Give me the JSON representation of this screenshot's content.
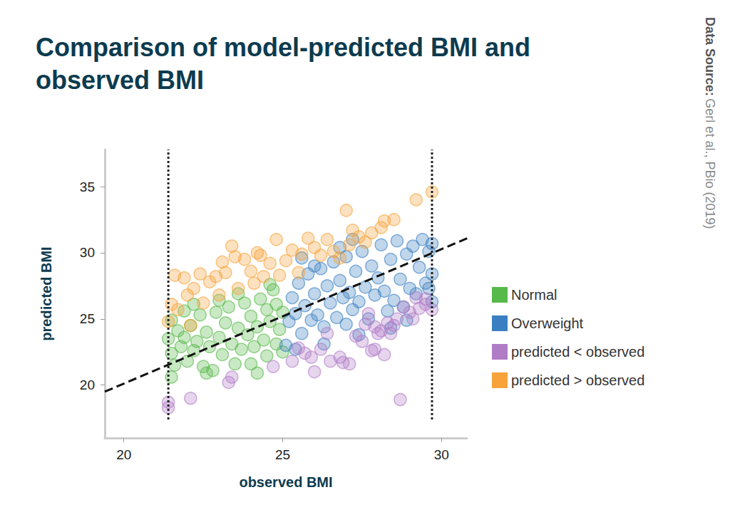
{
  "chart_data": {
    "type": "scatter",
    "title": "Comparison of model-predicted BMI and observed BMI",
    "x_label": "observed BMI",
    "y_label": "predicted BMI",
    "source": {
      "label": "Data Source:",
      "text": "Gerl et al., PBio (2019)"
    },
    "xlim": [
      19.4,
      30.8
    ],
    "xticks": [
      20,
      25,
      30
    ],
    "ylim": [
      16,
      37.8
    ],
    "yticks": [
      20,
      25,
      30,
      35
    ],
    "grid": false,
    "legend": "right",
    "marker": "circle",
    "series": [
      {
        "name": "Normal",
        "type": "scatter",
        "color": "#56b949",
        "values": [
          [
            21.4,
            23.5
          ],
          [
            21.5,
            22.4
          ],
          [
            21.5,
            20.6
          ],
          [
            21.6,
            21.5
          ],
          [
            21.7,
            24.1
          ],
          [
            21.8,
            22.9
          ],
          [
            21.9,
            23.6
          ],
          [
            22,
            21.8
          ],
          [
            22.1,
            24.5
          ],
          [
            22.2,
            22.6
          ],
          [
            22.3,
            23.3
          ],
          [
            22.4,
            25.3
          ],
          [
            22.5,
            21.4
          ],
          [
            22.6,
            24
          ],
          [
            22.7,
            22.9
          ],
          [
            22.8,
            21.1
          ],
          [
            22.9,
            25.5
          ],
          [
            23,
            23.6
          ],
          [
            23.1,
            22.3
          ],
          [
            23.2,
            24.7
          ],
          [
            23.3,
            25.9
          ],
          [
            23.4,
            23.1
          ],
          [
            23.5,
            21.6
          ],
          [
            23.6,
            24.3
          ],
          [
            23.7,
            22.7
          ],
          [
            23.8,
            26.2
          ],
          [
            23.9,
            23.8
          ],
          [
            24,
            21.6
          ],
          [
            24,
            25.2
          ],
          [
            24.1,
            22.9
          ],
          [
            24.2,
            24.4
          ],
          [
            24.3,
            26.5
          ],
          [
            24.4,
            23.4
          ],
          [
            24.5,
            22.2
          ],
          [
            24.5,
            25.7
          ],
          [
            24.6,
            24.8
          ],
          [
            24.7,
            27.2
          ],
          [
            24.8,
            23.1
          ],
          [
            24.8,
            26.1
          ],
          [
            24.9,
            24.2
          ],
          [
            25,
            25.5
          ],
          [
            25,
            22.5
          ],
          [
            22.2,
            26.1
          ],
          [
            23,
            26.4
          ],
          [
            21.9,
            25.6
          ],
          [
            23.6,
            26.9
          ],
          [
            24.2,
            20.9
          ],
          [
            22.6,
            20.9
          ],
          [
            21.5,
            24.9
          ],
          [
            24.6,
            27.6
          ]
        ]
      },
      {
        "name": "Overweight",
        "type": "scatter",
        "color": "#3a7fc1",
        "values": [
          [
            25.1,
            23
          ],
          [
            25.2,
            24.8
          ],
          [
            25.3,
            26.6
          ],
          [
            25.4,
            25.4
          ],
          [
            25.5,
            27.7
          ],
          [
            25.6,
            23.9
          ],
          [
            25.7,
            26
          ],
          [
            25.8,
            28.4
          ],
          [
            25.9,
            24.9
          ],
          [
            26,
            26.9
          ],
          [
            26.1,
            25.3
          ],
          [
            26.2,
            28.8
          ],
          [
            26.3,
            24.4
          ],
          [
            26.4,
            27.5
          ],
          [
            26.5,
            26.2
          ],
          [
            26.6,
            29.3
          ],
          [
            26.7,
            25.1
          ],
          [
            26.8,
            27.9
          ],
          [
            26.9,
            26.6
          ],
          [
            27,
            24.6
          ],
          [
            27,
            29.7
          ],
          [
            27.1,
            27
          ],
          [
            27.2,
            25.7
          ],
          [
            27.3,
            28.6
          ],
          [
            27.4,
            26.3
          ],
          [
            27.5,
            30.1
          ],
          [
            27.6,
            27.4
          ],
          [
            27.7,
            25
          ],
          [
            27.8,
            29
          ],
          [
            27.9,
            26.8
          ],
          [
            28,
            28.1
          ],
          [
            28.1,
            30.6
          ],
          [
            28.2,
            27.1
          ],
          [
            28.3,
            25.6
          ],
          [
            28.4,
            29.5
          ],
          [
            28.5,
            26.4
          ],
          [
            28.6,
            30.9
          ],
          [
            28.7,
            28
          ],
          [
            28.8,
            25.9
          ],
          [
            28.9,
            29.9
          ],
          [
            29,
            27.3
          ],
          [
            29.1,
            30.5
          ],
          [
            29.2,
            26.9
          ],
          [
            29.3,
            28.9
          ],
          [
            29.4,
            31
          ],
          [
            29.5,
            27.7
          ],
          [
            29.6,
            30.1
          ],
          [
            29.6,
            27.3
          ],
          [
            29.7,
            30.7
          ],
          [
            29.7,
            28.4
          ],
          [
            26,
            29
          ],
          [
            25.6,
            29.6
          ],
          [
            27.4,
            23.8
          ],
          [
            26.8,
            30.4
          ],
          [
            28.4,
            24.3
          ],
          [
            25.4,
            22.7
          ],
          [
            28.9,
            24.9
          ],
          [
            27.2,
            31
          ],
          [
            29.7,
            26.3
          ],
          [
            26.3,
            23.1
          ]
        ]
      },
      {
        "name": "predicted < observed",
        "type": "scatter",
        "color": "#b07cc6",
        "values": [
          [
            21.4,
            18.3
          ],
          [
            21.4,
            18.7
          ],
          [
            22.1,
            19
          ],
          [
            23.3,
            20.2
          ],
          [
            23.4,
            20.6
          ],
          [
            24.7,
            21.4
          ],
          [
            25.3,
            21.8
          ],
          [
            25.5,
            22.8
          ],
          [
            25.7,
            22.4
          ],
          [
            25.9,
            22.1
          ],
          [
            26,
            21
          ],
          [
            26.2,
            22.7
          ],
          [
            26.5,
            21.8
          ],
          [
            26.8,
            22.1
          ],
          [
            26.4,
            23.9
          ],
          [
            26.9,
            21.7
          ],
          [
            27.1,
            21.6
          ],
          [
            27.3,
            23.7
          ],
          [
            27.5,
            23.3
          ],
          [
            27.6,
            24.6
          ],
          [
            27.7,
            25.4
          ],
          [
            27.8,
            22.6
          ],
          [
            27.9,
            22.7
          ],
          [
            28,
            23.9
          ],
          [
            28.1,
            24.1
          ],
          [
            28.2,
            22.3
          ],
          [
            28.4,
            23.9
          ],
          [
            28.5,
            24.5
          ],
          [
            28.6,
            25
          ],
          [
            28.7,
            18.9
          ],
          [
            28.8,
            25.9
          ],
          [
            29,
            25.5
          ],
          [
            29.1,
            25
          ],
          [
            29.3,
            25.8
          ],
          [
            29.5,
            26.1
          ],
          [
            29.5,
            26.5
          ],
          [
            29.7,
            25.7
          ],
          [
            29.2,
            26.6
          ],
          [
            28.3,
            24.7
          ],
          [
            27.9,
            24.4
          ]
        ]
      },
      {
        "name": "predicted > observed",
        "type": "scatter",
        "color": "#f7a33a",
        "values": [
          [
            21.4,
            24.8
          ],
          [
            21.5,
            26.1
          ],
          [
            21.6,
            28.3
          ],
          [
            21.7,
            25.7
          ],
          [
            21.9,
            28.1
          ],
          [
            22,
            26.8
          ],
          [
            22.2,
            27.3
          ],
          [
            22.4,
            28.4
          ],
          [
            22.5,
            26.2
          ],
          [
            22.7,
            27.8
          ],
          [
            22.9,
            28.2
          ],
          [
            23,
            26.8
          ],
          [
            23.2,
            28.5
          ],
          [
            23.4,
            30.5
          ],
          [
            23.5,
            29.7
          ],
          [
            23.6,
            27.3
          ],
          [
            23.8,
            29.5
          ],
          [
            24,
            28.6
          ],
          [
            24.1,
            27.7
          ],
          [
            24.2,
            30
          ],
          [
            24.4,
            28.2
          ],
          [
            24.6,
            29.2
          ],
          [
            24.8,
            31
          ],
          [
            24.9,
            28.3
          ],
          [
            25.1,
            29.4
          ],
          [
            25.3,
            30.2
          ],
          [
            25.5,
            28.5
          ],
          [
            25.6,
            29.9
          ],
          [
            25.8,
            31.1
          ],
          [
            26,
            30.4
          ],
          [
            26.2,
            29.8
          ],
          [
            26.4,
            31
          ],
          [
            26.6,
            30.1
          ],
          [
            26.8,
            29.6
          ],
          [
            27,
            33.2
          ],
          [
            27.1,
            30.6
          ],
          [
            27.2,
            31.7
          ],
          [
            27.4,
            31.2
          ],
          [
            27.6,
            30.8
          ],
          [
            27.8,
            31.5
          ],
          [
            28.1,
            31.9
          ],
          [
            28.2,
            32.4
          ],
          [
            28.5,
            32.5
          ],
          [
            29.2,
            34
          ],
          [
            29.7,
            34.6
          ],
          [
            23.1,
            29.3
          ],
          [
            22.1,
            24.5
          ],
          [
            24.3,
            29.8
          ]
        ]
      },
      {
        "type": "line",
        "line_style": "dashed",
        "color": "#111111",
        "values": [
          [
            19.4,
            19.5
          ],
          [
            31.6,
            31.9
          ]
        ]
      },
      {
        "type": "line",
        "line_style": "dotted",
        "color": "#222222",
        "values": [
          [
            21.4,
            17.4
          ],
          [
            21.4,
            37.8
          ]
        ]
      },
      {
        "type": "line",
        "line_style": "dotted",
        "color": "#222222",
        "values": [
          [
            29.7,
            17.4
          ],
          [
            29.7,
            37.8
          ]
        ]
      }
    ]
  }
}
